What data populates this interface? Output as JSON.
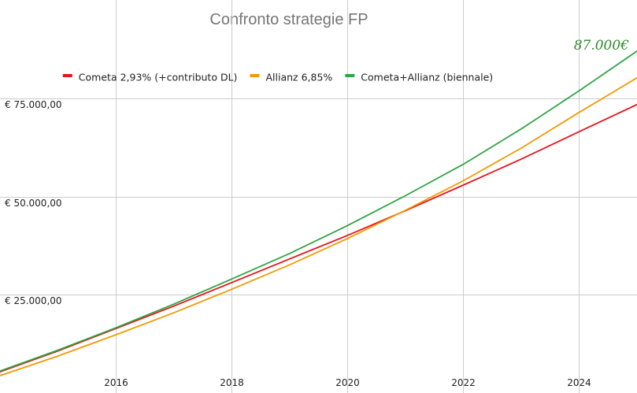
{
  "chart_data": {
    "type": "line",
    "title": "Confronto strategie FP",
    "xlabel": "",
    "ylabel": "",
    "xlim": [
      2014,
      2025
    ],
    "ylim": [
      0,
      100000
    ],
    "x_ticks": [
      2016,
      2018,
      2020,
      2022,
      2024
    ],
    "x_tick_labels": [
      "2016",
      "2018",
      "2020",
      "2022",
      "2024"
    ],
    "y_ticks": [
      25000,
      50000,
      75000
    ],
    "y_tick_labels": [
      "€ 25.000,00",
      "€ 50.000,00",
      "€ 75.000,00"
    ],
    "grid": true,
    "legend_position": "top",
    "annotation": "87.000€",
    "x": [
      2014,
      2015,
      2016,
      2017,
      2018,
      2019,
      2020,
      2021,
      2022,
      2023,
      2024,
      2025
    ],
    "series": [
      {
        "name": "Cometa 2,93% (+contributo DL)",
        "color": "#e8141a",
        "values": [
          5400,
          10700,
          16400,
          22100,
          28100,
          34100,
          40100,
          46400,
          52900,
          59500,
          66500,
          73400
        ]
      },
      {
        "name": "Allianz 6,85%",
        "color": "#f29a00",
        "values": [
          4400,
          9400,
          14800,
          20400,
          26400,
          32600,
          39300,
          46500,
          54000,
          62300,
          71400,
          80200
        ]
      },
      {
        "name": "Cometa+Allianz (biennale)",
        "color": "#2fa545",
        "values": [
          5600,
          10900,
          16600,
          22600,
          29000,
          35500,
          42600,
          50200,
          58200,
          67200,
          76900,
          87000
        ]
      }
    ]
  }
}
